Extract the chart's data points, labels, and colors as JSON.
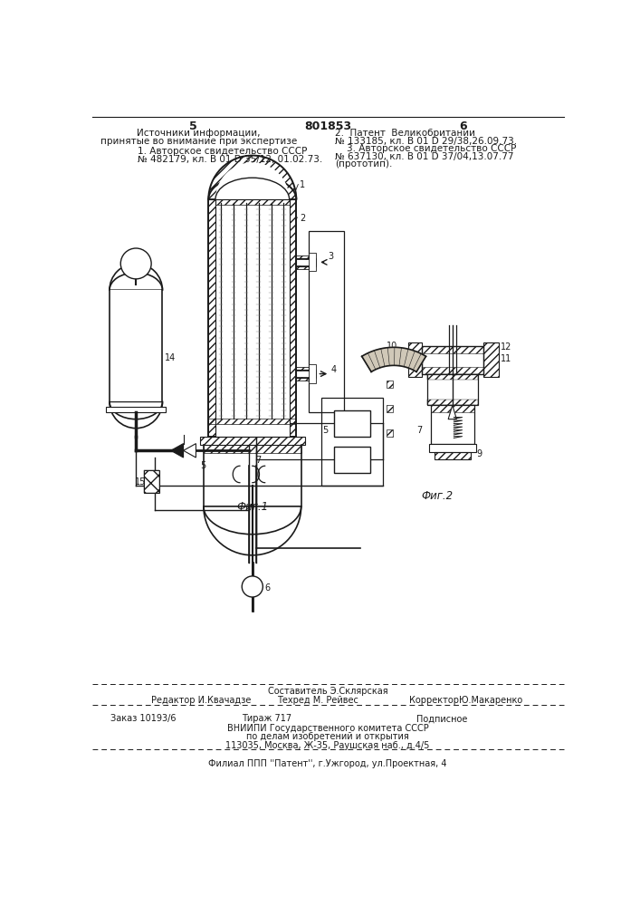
{
  "page_number_left": "5",
  "page_number_center": "801853",
  "page_number_right": "6",
  "header_left_line1": "Источники информации,",
  "header_left_line2": "принятые во внимание при экспертизе",
  "ref1_line1": "1. Авторское свидетельство СССР",
  "ref1_line2": "№ 482179, кл. В 01 D 35/12, 01.02.73.",
  "ref2_line1": "2.  Патент  Великобритании",
  "ref2_line2": "№ 133185, кл. В 01 D 29/38,26.09.73.",
  "ref3_line1": "    3. Авторское свидетельство СССР",
  "ref3_line2": "№ 637130, кл. В 01 D 37/04,13.07.77",
  "ref3_line3": "(прототип).",
  "fig1_caption": "Фиг.1",
  "fig2_caption": "Фиг.2",
  "footer_line1": "Составитель Э.Склярская",
  "footer_line2a": "Редактор И.Квачадзе",
  "footer_line2b": "Техред М. Рейвес",
  "footer_line2c": "КорректорЮ.Макаренко",
  "footer_line3a": "Заказ 10193/6",
  "footer_line3b": "Тираж 717",
  "footer_line3c": "Подписное",
  "footer_line4": "ВНИИПИ Государственного комитета СССР",
  "footer_line5": "по делам изобретений и открытия",
  "footer_line6": "113035, Москва, Ж-35, Раушская наб., д.4/5",
  "footer_line7": "Филиал ППП ''Патент'', г.Ужгород, ул.Проектная, 4",
  "bg_color": "#ffffff",
  "line_color": "#1a1a1a",
  "hatch_color": "#555555",
  "text_color": "#1a1a1a"
}
